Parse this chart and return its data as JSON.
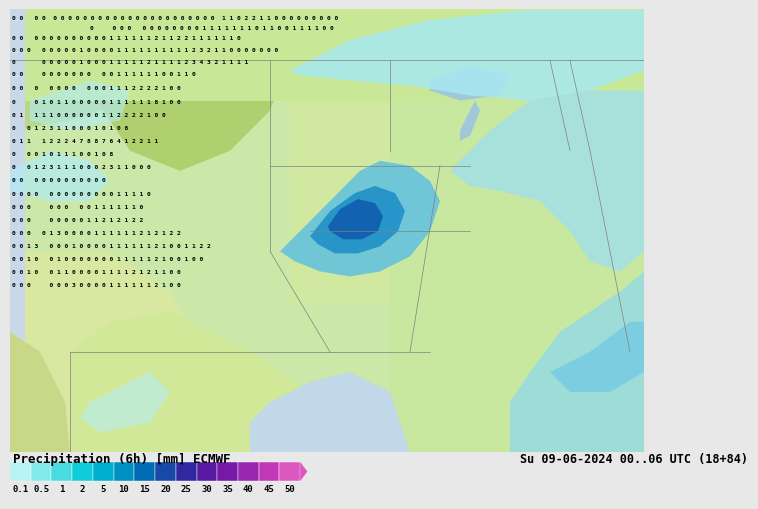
{
  "title_left": "Precipitation (6h) [mm] ECMWF",
  "title_right": "Su 09-06-2024 00..06 UTC (18+84)",
  "colorbar_colors": [
    "#b8f2f2",
    "#80eaea",
    "#48dce0",
    "#10ccd8",
    "#00b0d0",
    "#0090c4",
    "#006cb4",
    "#1848a8",
    "#3028a0",
    "#5818a0",
    "#7818a8",
    "#9828b0",
    "#c038b8",
    "#dc58c0"
  ],
  "tick_labels": [
    "0.1",
    "0.5",
    "1",
    "2",
    "5",
    "10",
    "15",
    "20",
    "25",
    "30",
    "35",
    "40",
    "45",
    "50"
  ],
  "bg_color": "#d4e8c0",
  "title_fontsize": 9,
  "colorbar_label_fontsize": 6.5,
  "map_land_color": "#c8e8a8",
  "map_mountain_color": "#a8c880",
  "map_water_color": "#d0e8f0",
  "precip_cyan_light": "#b0f0f0",
  "precip_cyan": "#60d0e0",
  "precip_blue_light": "#40b0d8",
  "precip_blue": "#1070b8",
  "precip_blue_dark": "#1040a0",
  "text_color": "#000000",
  "border_color": "#808080"
}
